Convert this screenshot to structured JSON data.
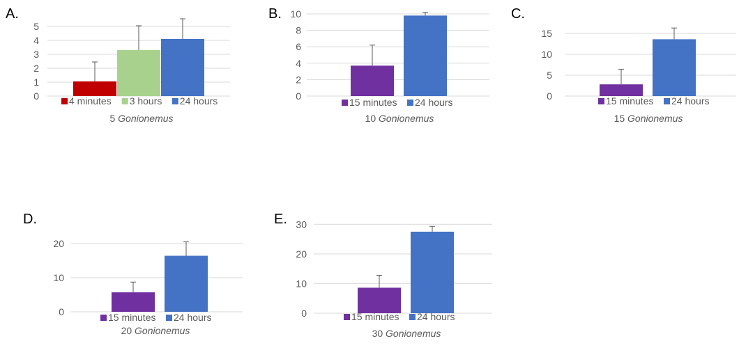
{
  "chart_data": [
    {
      "id": "A",
      "panel_label": "A.",
      "type": "bar",
      "categories": [
        "4 minutes",
        "3 hours",
        "24 hours"
      ],
      "values": [
        1.05,
        3.3,
        4.1
      ],
      "errors": [
        1.4,
        1.75,
        1.45
      ],
      "colors": [
        "#c00000",
        "#a9d18e",
        "#4472c4"
      ],
      "yticks": [
        0,
        1,
        2,
        3,
        4,
        5
      ],
      "ylim": [
        0,
        5.5
      ],
      "caption_num": "5",
      "caption_species": "Gonionemus",
      "legend_position": "bottom",
      "grid": true
    },
    {
      "id": "B",
      "panel_label": "B.",
      "type": "bar",
      "categories": [
        "15 minutes",
        "24 hours"
      ],
      "values": [
        3.7,
        9.8
      ],
      "errors": [
        2.5,
        0.4
      ],
      "colors": [
        "#7030a0",
        "#4472c4"
      ],
      "yticks": [
        0,
        2,
        4,
        6,
        8,
        10
      ],
      "ylim": [
        0,
        10
      ],
      "caption_num": "10",
      "caption_species": "Gonionemus",
      "legend_position": "bottom",
      "grid": true
    },
    {
      "id": "C",
      "panel_label": "C.",
      "type": "bar",
      "categories": [
        "15 minutes",
        "24 hours"
      ],
      "values": [
        2.8,
        13.6
      ],
      "errors": [
        3.6,
        2.7
      ],
      "colors": [
        "#7030a0",
        "#4472c4"
      ],
      "yticks": [
        0,
        5,
        10,
        15
      ],
      "ylim": [
        0,
        17
      ],
      "caption_num": "15",
      "caption_species": "Gonionemus",
      "legend_position": "bottom",
      "grid": true
    },
    {
      "id": "D",
      "panel_label": "D.",
      "type": "bar",
      "categories": [
        "15 minutes",
        "24 hours"
      ],
      "values": [
        5.7,
        16.4
      ],
      "errors": [
        3.0,
        4.1
      ],
      "colors": [
        "#7030a0",
        "#4472c4"
      ],
      "yticks": [
        0,
        10,
        20
      ],
      "ylim": [
        0,
        22
      ],
      "caption_num": "20",
      "caption_species": "Gonionemus",
      "legend_position": "bottom",
      "grid": true
    },
    {
      "id": "E",
      "panel_label": "E.",
      "type": "bar",
      "categories": [
        "15 minutes",
        "24 hours"
      ],
      "values": [
        8.6,
        27.5
      ],
      "errors": [
        4.2,
        1.8
      ],
      "colors": [
        "#7030a0",
        "#4472c4"
      ],
      "yticks": [
        0,
        10,
        20,
        30
      ],
      "ylim": [
        0,
        31
      ],
      "caption_num": "30",
      "caption_species": "Gonionemus",
      "legend_position": "bottom",
      "grid": true
    }
  ],
  "colors": {
    "gridline": "#d9d9d9",
    "axis_text": "#595959",
    "error_bar": "#595959"
  }
}
